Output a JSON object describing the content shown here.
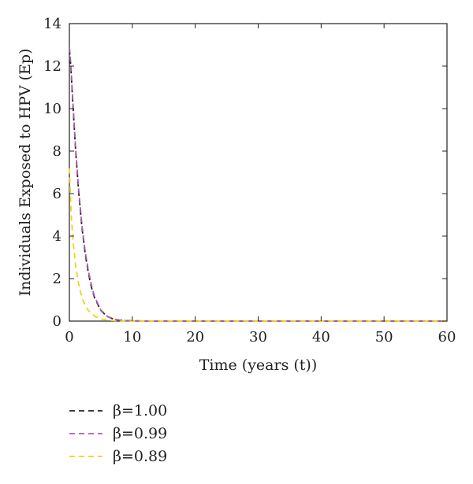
{
  "chart_data": {
    "type": "line",
    "title": "",
    "xlabel": "Time (years (t))",
    "ylabel": "Individuals Exposed to HPV (Ep)",
    "xlim": [
      0,
      60
    ],
    "ylim": [
      0,
      14
    ],
    "xticks": [
      "0",
      "10",
      "20",
      "30",
      "40",
      "50",
      "60"
    ],
    "yticks": [
      "0",
      "2",
      "4",
      "6",
      "8",
      "10",
      "12",
      "14"
    ],
    "grid": false,
    "legend_position": "bottom-left",
    "series": [
      {
        "name": "β=1.00",
        "color": "#222222",
        "dash": "dashed",
        "x": [
          0,
          0.25,
          0.5,
          1,
          1.5,
          2,
          2.5,
          3,
          3.5,
          4,
          5,
          6,
          7,
          8,
          10,
          15,
          20,
          30,
          40,
          50,
          60
        ],
        "y": [
          12.8,
          11.9,
          10.5,
          8.0,
          6.0,
          4.4,
          3.2,
          2.3,
          1.6,
          1.1,
          0.5,
          0.22,
          0.1,
          0.04,
          0.01,
          0,
          0,
          0,
          0,
          0,
          0
        ]
      },
      {
        "name": "β=0.99",
        "color": "#b05ab0",
        "dash": "dashed",
        "x": [
          0,
          0.25,
          0.5,
          1,
          1.5,
          2,
          2.5,
          3,
          3.5,
          4,
          5,
          6,
          7,
          8,
          10,
          15,
          20,
          30,
          40,
          50,
          60
        ],
        "y": [
          12.9,
          12.0,
          10.6,
          8.1,
          6.1,
          4.5,
          3.3,
          2.4,
          1.7,
          1.15,
          0.52,
          0.23,
          0.1,
          0.04,
          0.01,
          0,
          0,
          0,
          0,
          0,
          0
        ]
      },
      {
        "name": "β=0.89",
        "color": "#f2d21a",
        "dash": "dashed",
        "x": [
          0,
          0.15,
          0.3,
          0.6,
          1,
          1.5,
          2,
          2.5,
          3,
          4,
          5,
          6,
          8,
          10,
          15,
          20,
          30,
          40,
          50,
          60
        ],
        "y": [
          7.2,
          6.0,
          5.0,
          3.7,
          2.6,
          1.7,
          1.1,
          0.75,
          0.5,
          0.23,
          0.1,
          0.05,
          0.01,
          0,
          0,
          0,
          0,
          0,
          0,
          0
        ]
      }
    ]
  }
}
